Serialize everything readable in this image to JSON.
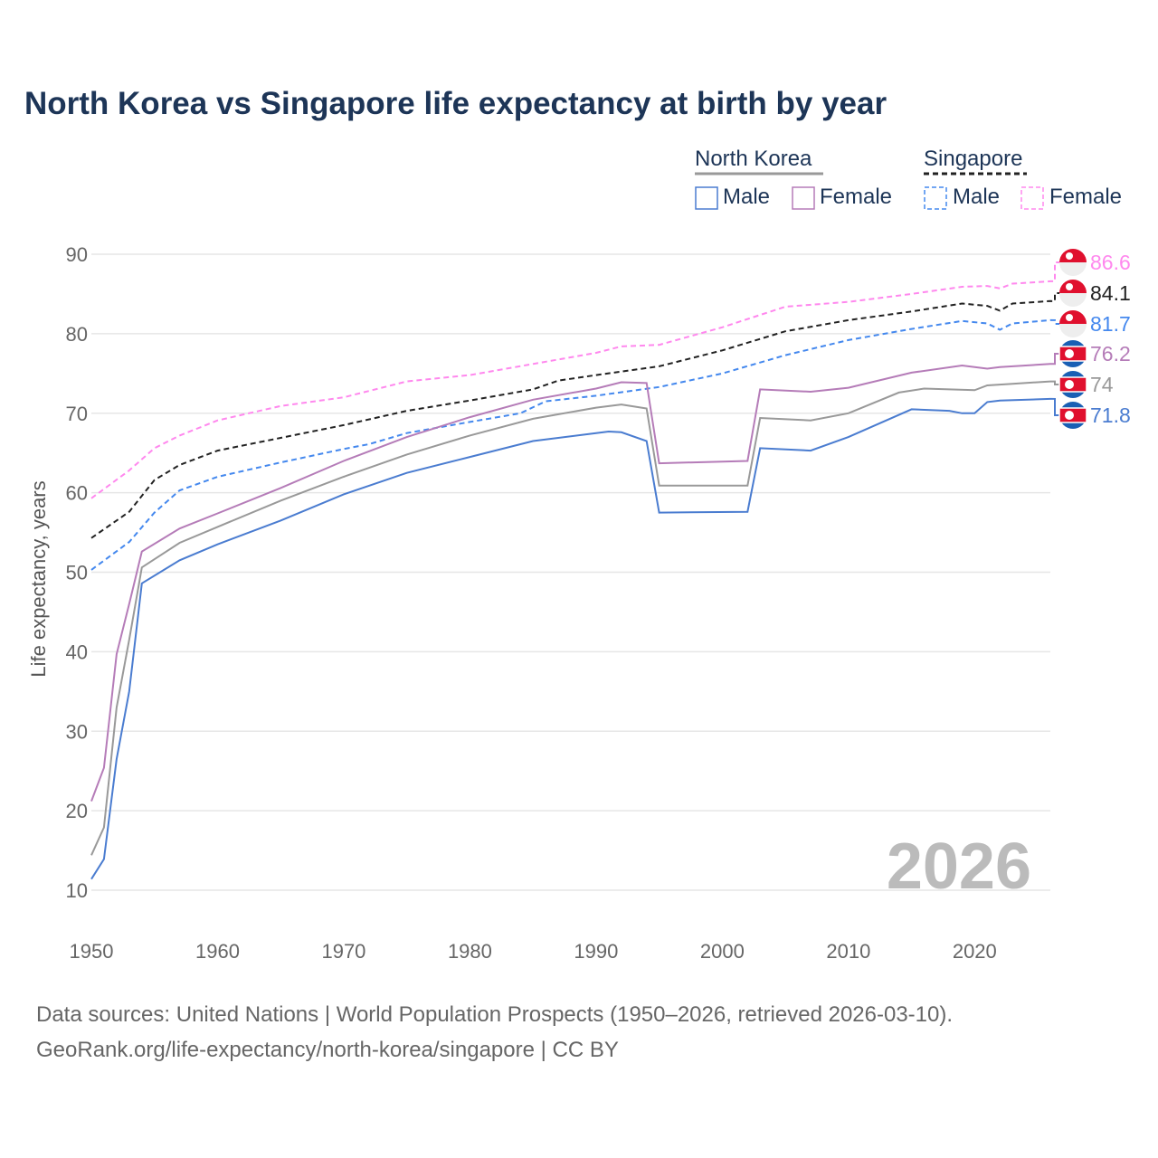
{
  "chart_data": {
    "type": "line",
    "title": "North Korea vs Singapore life expectancy at birth by year",
    "xlabel": "",
    "ylabel": "Life expectancy, years",
    "xlim": [
      1950,
      2026
    ],
    "ylim": [
      10,
      90
    ],
    "xticks": [
      1950,
      1960,
      1970,
      1980,
      1990,
      2000,
      2010,
      2020
    ],
    "yticks": [
      10,
      20,
      30,
      40,
      50,
      60,
      70,
      80,
      90
    ],
    "watermark": "2026",
    "legend": {
      "groups": [
        "North Korea",
        "Singapore"
      ],
      "male": "Male",
      "female": "Female",
      "placement": "top-right"
    },
    "series": [
      {
        "name": "Singapore Female",
        "country": "Singapore",
        "color": "#ff88ee",
        "dashed": true,
        "label": "86.6",
        "x": [
          1950,
          1953,
          1955,
          1957,
          1960,
          1965,
          1970,
          1975,
          1980,
          1985,
          1990,
          1992,
          1995,
          2000,
          2005,
          2010,
          2015,
          2019,
          2021,
          2022,
          2023,
          2026
        ],
        "y": [
          59.3,
          62.8,
          65.6,
          67.2,
          69.1,
          70.9,
          72,
          74,
          74.8,
          76.2,
          77.6,
          78.4,
          78.6,
          80.8,
          83.4,
          84,
          85,
          85.9,
          86,
          85.7,
          86.3,
          86.6
        ]
      },
      {
        "name": "Singapore",
        "country": "Singapore",
        "color": "#222222",
        "dashed": true,
        "label": "84.1",
        "x": [
          1950,
          1953,
          1955,
          1957,
          1960,
          1965,
          1970,
          1975,
          1980,
          1985,
          1987,
          1990,
          1995,
          2000,
          2005,
          2010,
          2015,
          2019,
          2021,
          2022,
          2023,
          2026
        ],
        "y": [
          54.3,
          57.6,
          61.6,
          63.5,
          65.3,
          66.9,
          68.5,
          70.3,
          71.6,
          73,
          74.1,
          74.8,
          75.9,
          77.9,
          80.3,
          81.7,
          82.8,
          83.8,
          83.5,
          82.9,
          83.8,
          84.1
        ]
      },
      {
        "name": "Singapore Male",
        "country": "Singapore",
        "color": "#4488ee",
        "dashed": true,
        "label": "81.7",
        "x": [
          1950,
          1953,
          1955,
          1957,
          1960,
          1965,
          1970,
          1972,
          1975,
          1980,
          1984,
          1986,
          1990,
          1995,
          2000,
          2005,
          2010,
          2015,
          2019,
          2021,
          2022,
          2023,
          2026
        ],
        "y": [
          50.3,
          53.8,
          57.5,
          60.3,
          62,
          63.8,
          65.5,
          66.1,
          67.5,
          68.9,
          70,
          71.5,
          72.2,
          73.3,
          75,
          77.3,
          79.2,
          80.6,
          81.6,
          81.3,
          80.5,
          81.3,
          81.7
        ]
      },
      {
        "name": "North Korea Female",
        "country": "North Korea",
        "color": "#b57cb8",
        "dashed": false,
        "label": "76.2",
        "x": [
          1950,
          1951,
          1952,
          1953,
          1954,
          1957,
          1960,
          1965,
          1970,
          1975,
          1980,
          1985,
          1990,
          1992,
          1994,
          1995,
          2002,
          2003,
          2007,
          2010,
          2015,
          2019,
          2021,
          2022,
          2026
        ],
        "y": [
          21.2,
          25.4,
          39.7,
          46,
          52.6,
          55.5,
          57.4,
          60.6,
          64,
          67,
          69.5,
          71.7,
          73.1,
          73.9,
          73.8,
          63.7,
          64,
          73,
          72.7,
          73.2,
          75.1,
          76,
          75.6,
          75.8,
          76.2
        ]
      },
      {
        "name": "North Korea",
        "country": "North Korea",
        "color": "#999999",
        "dashed": false,
        "label": "74",
        "x": [
          1950,
          1951,
          1952,
          1953,
          1954,
          1957,
          1960,
          1965,
          1970,
          1975,
          1980,
          1985,
          1990,
          1992,
          1994,
          1995,
          2002,
          2003,
          2007,
          2010,
          2014,
          2016,
          2020,
          2021,
          2023,
          2026
        ],
        "y": [
          14.4,
          17.9,
          33,
          41.5,
          50.6,
          53.7,
          55.7,
          59,
          62,
          64.8,
          67.2,
          69.3,
          70.7,
          71.1,
          70.6,
          60.9,
          60.9,
          69.4,
          69.1,
          70,
          72.6,
          73.1,
          72.9,
          73.5,
          73.7,
          74
        ]
      },
      {
        "name": "North Korea Male",
        "country": "North Korea",
        "color": "#4a7cd0",
        "dashed": false,
        "label": "71.8",
        "x": [
          1950,
          1951,
          1952,
          1953,
          1954,
          1957,
          1960,
          1965,
          1970,
          1975,
          1980,
          1985,
          1990,
          1991,
          1992,
          1994,
          1995,
          2002,
          2003,
          2007,
          2010,
          2015,
          2018,
          2019,
          2020,
          2021,
          2022,
          2026
        ],
        "y": [
          11.4,
          13.9,
          26.5,
          35,
          48.6,
          51.5,
          53.5,
          56.5,
          59.8,
          62.5,
          64.5,
          66.5,
          67.5,
          67.7,
          67.6,
          66.5,
          57.5,
          57.6,
          65.6,
          65.3,
          67,
          70.5,
          70.3,
          70,
          70,
          71.4,
          71.6,
          71.8
        ]
      }
    ]
  },
  "footer": {
    "line1": "Data sources: United Nations | World Population Prospects (1950–2026, retrieved 2026-03-10).",
    "line2": "GeoRank.org/life-expectancy/north-korea/singapore | CC BY"
  }
}
